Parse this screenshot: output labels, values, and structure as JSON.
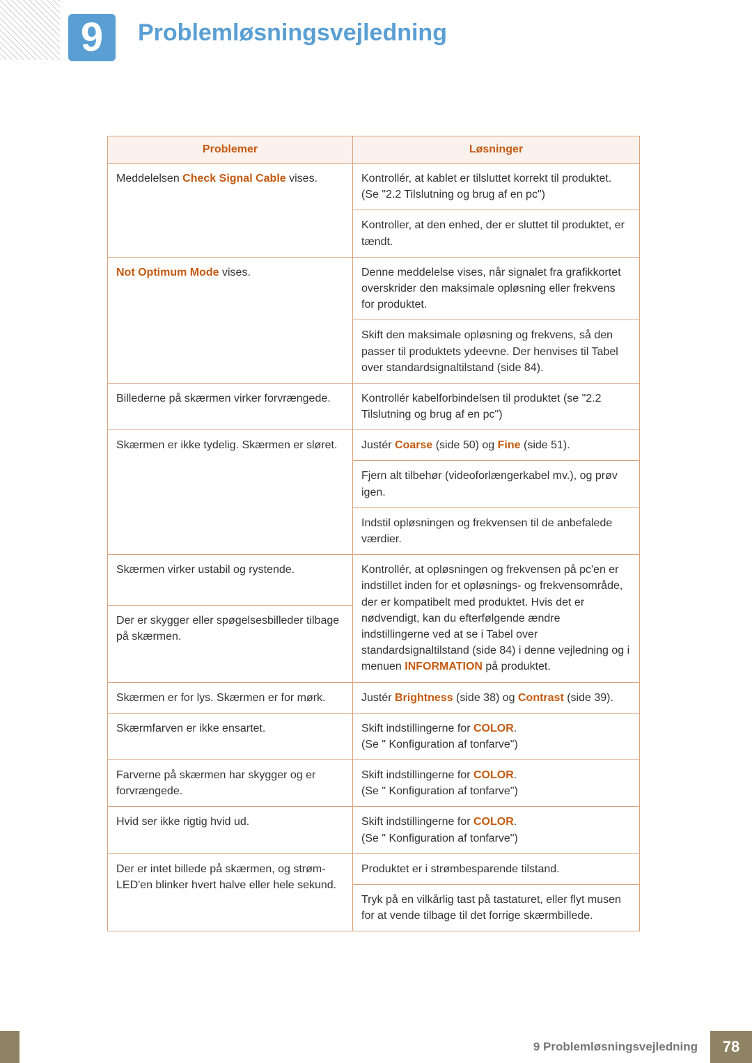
{
  "header": {
    "chapter_number": "9",
    "title": "Problemløsningsvejledning"
  },
  "table": {
    "columns": [
      "Problemer",
      "Løsninger"
    ],
    "rows": [
      {
        "problem": {
          "pre": "Meddelelsen ",
          "hl": "Check Signal Cable",
          "post": " vises."
        },
        "solution": "Kontrollér, at kablet er tilsluttet korrekt til produktet. (Se \"2.2 Tilslutning og brug af en pc\")",
        "p_rowspan": 2
      },
      {
        "solution": "Kontroller, at den enhed, der er sluttet til produktet, er tændt."
      },
      {
        "problem": {
          "hl": "Not Optimum Mode",
          "post": " vises."
        },
        "solution": "Denne meddelelse vises, når signalet fra grafikkortet overskrider den maksimale opløsning eller frekvens for produktet.",
        "p_rowspan": 2
      },
      {
        "solution": "Skift den maksimale opløsning og frekvens, så den passer til produktets ydeevne. Der henvises til Tabel over standardsignaltilstand (side 84)."
      },
      {
        "problem": {
          "text": "Billederne på skærmen virker forvrængede."
        },
        "solution": "Kontrollér kabelforbindelsen til produktet (se \"2.2 Tilslutning og brug af en pc\")"
      },
      {
        "problem": {
          "text": "Skærmen er ikke tydelig. Skærmen er sløret."
        },
        "solution_rich": {
          "pre": "Justér ",
          "hl1": "Coarse",
          "mid1": " (side 50) og ",
          "hl2": "Fine",
          "mid2": " (side 51)."
        },
        "p_rowspan": 3
      },
      {
        "solution": "Fjern alt tilbehør (videoforlængerkabel mv.), og prøv igen."
      },
      {
        "solution": "Indstil opløsningen og frekvensen til de anbefalede værdier."
      },
      {
        "problem": {
          "text": "Skærmen virker ustabil og rystende."
        },
        "solution_rich": {
          "pre": "Kontrollér, at opløsningen og frekvensen på pc'en er indstillet inden for et opløsnings- og frekvensområde, der er kompatibelt med produktet. Hvis det er nødvendigt, kan du efterfølgende ændre indstillingerne ved at se i Tabel over standardsignaltilstand (side 84) i denne vejledning og i menuen ",
          "hl1": "INFORMATION",
          "mid1": " på produktet."
        },
        "s_rowspan": 2
      },
      {
        "problem": {
          "text": "Der er skygger eller spøgelsesbilleder tilbage på skærmen."
        }
      },
      {
        "problem": {
          "text": "Skærmen er for lys. Skærmen er for mørk."
        },
        "solution_rich": {
          "pre": "Justér ",
          "hl1": "Brightness",
          "mid1": " (side 38) og ",
          "hl2": "Contrast",
          "mid2": " (side 39)."
        }
      },
      {
        "problem": {
          "text": "Skærmfarven er ikke ensartet."
        },
        "solution_rich": {
          "pre": "Skift indstillingerne for ",
          "hl1": "COLOR",
          "mid1": "."
        },
        "solution_extra": "(Se \" Konfiguration af tonfarve\")"
      },
      {
        "problem": {
          "text": "Farverne på skærmen har skygger og er forvrængede."
        },
        "solution_rich": {
          "pre": "Skift indstillingerne for ",
          "hl1": "COLOR",
          "mid1": "."
        },
        "solution_extra": "(Se \" Konfiguration af tonfarve\")"
      },
      {
        "problem": {
          "text": "Hvid ser ikke rigtig hvid ud."
        },
        "solution_rich": {
          "pre": "Skift indstillingerne for ",
          "hl1": "COLOR",
          "mid1": "."
        },
        "solution_extra": "(Se \" Konfiguration af tonfarve\")"
      },
      {
        "problem": {
          "text": "Der er intet billede på skærmen, og strøm-LED'en blinker hvert halve eller hele sekund."
        },
        "solution": "Produktet er i strømbesparende tilstand.",
        "p_rowspan": 2
      },
      {
        "solution": "Tryk på en vilkårlig tast på tastaturet, eller flyt musen for at vende tilbage til det forrige skærmbillede."
      }
    ]
  },
  "footer": {
    "label": "9 Problemløsningsvejledning",
    "page": "78"
  }
}
